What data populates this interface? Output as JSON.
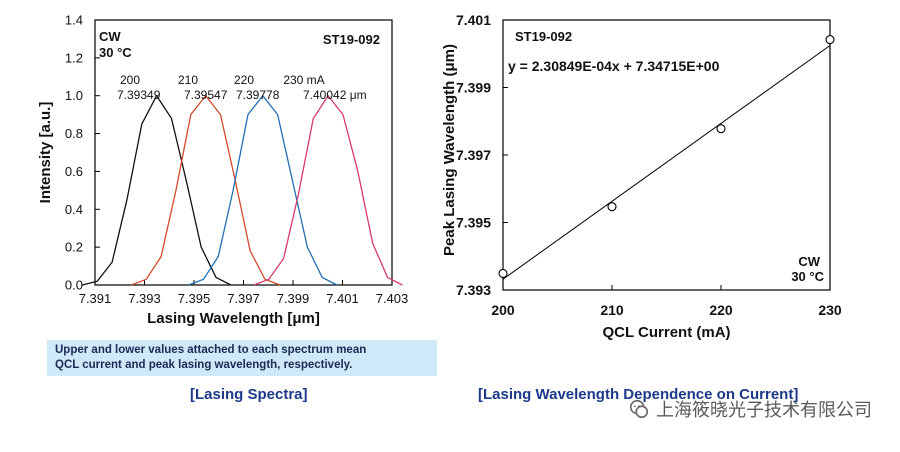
{
  "chart_data": [
    {
      "type": "line",
      "title": "",
      "xlabel": "Lasing Wavelength [μm]",
      "ylabel": "Intensity [a.u.]",
      "xlim": [
        7.391,
        7.403
      ],
      "ylim": [
        0.0,
        1.4
      ],
      "x_ticks": [
        "7.391",
        "7.393",
        "7.395",
        "7.397",
        "7.399",
        "7.401",
        "7.403"
      ],
      "y_ticks": [
        "0.0",
        "0.2",
        "0.4",
        "0.6",
        "0.8",
        "1.0",
        "1.2",
        "1.4"
      ],
      "annotations": {
        "mode": "CW",
        "temp": "30 °C",
        "sample": "ST19-092",
        "currents": [
          "200",
          "210",
          "220",
          "230 mA"
        ],
        "peaks": [
          "7.39349",
          "7.39547",
          "7.39778",
          "7.40042 μm"
        ]
      },
      "series": [
        {
          "color": "#111111",
          "peak": 7.39349,
          "width": 0.0006,
          "values": [
            0,
            0.02,
            0.12,
            0.45,
            0.85,
            1.0,
            0.88,
            0.55,
            0.2,
            0.04,
            0
          ]
        },
        {
          "color": "#d24a2a",
          "peak": 7.39547,
          "width": 0.0006,
          "values": [
            0,
            0.03,
            0.15,
            0.5,
            0.9,
            1.0,
            0.9,
            0.55,
            0.18,
            0.03,
            0
          ]
        },
        {
          "color": "#1f6fb5",
          "peak": 7.39778,
          "width": 0.0006,
          "values": [
            0,
            0.03,
            0.15,
            0.5,
            0.9,
            1.0,
            0.9,
            0.55,
            0.2,
            0.04,
            0
          ]
        },
        {
          "color": "#d63a6a",
          "peak": 7.40042,
          "width": 0.0006,
          "values": [
            0,
            0.03,
            0.14,
            0.48,
            0.88,
            1.0,
            0.9,
            0.6,
            0.22,
            0.04,
            0
          ]
        }
      ],
      "grid": false
    },
    {
      "type": "scatter",
      "title": "",
      "xlabel": "QCL Current (mA)",
      "ylabel": "Peak Lasing Wavelength (μm)",
      "xlim": [
        200,
        230
      ],
      "ylim": [
        7.393,
        7.401
      ],
      "x_ticks": [
        "200",
        "210",
        "220",
        "230"
      ],
      "y_ticks": [
        "7.393",
        "7.395",
        "7.397",
        "7.399",
        "7.401"
      ],
      "x": [
        200,
        210,
        220,
        230
      ],
      "y": [
        7.39349,
        7.39547,
        7.39778,
        7.40042
      ],
      "fit": {
        "slope": 0.000230849,
        "intercept": 7.34715,
        "equation": "y = 2.30849E-04x + 7.34715E+00"
      },
      "annotations": {
        "sample": "ST19-092",
        "mode": "CW",
        "temp": "30 °C"
      },
      "grid": false
    }
  ],
  "note": {
    "line1": "Upper and lower values attached to each spectrum mean",
    "line2": "QCL current and peak lasing wavelength, respectively."
  },
  "captions": {
    "left": "[Lasing Spectra]",
    "right": "[Lasing Wavelength Dependence on Current]"
  },
  "watermark": {
    "text": "上海筱晓光子技术有限公司",
    "icon": "wechat-icon"
  }
}
